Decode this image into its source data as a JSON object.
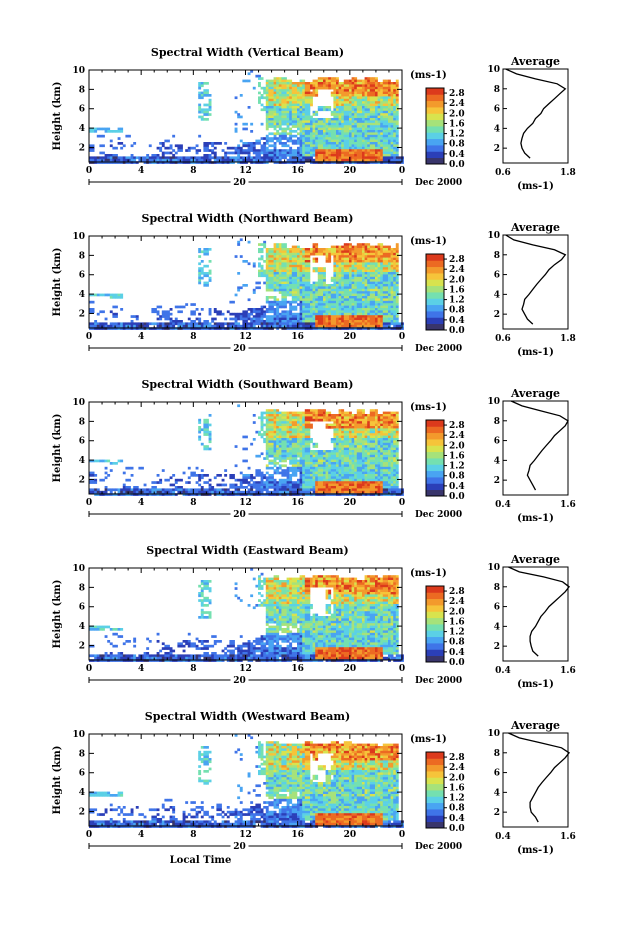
{
  "colors": {
    "scale": [
      "#39356b",
      "#2b3fb8",
      "#3f74e8",
      "#49a4f2",
      "#5bd0e6",
      "#74e0b0",
      "#a6e27a",
      "#d8e34e",
      "#f6c43a",
      "#f39a2c",
      "#ec6a22",
      "#dc3a1c"
    ],
    "line": "#000000"
  },
  "chart_data": [
    {
      "type": "heatmap",
      "title": "Spectral Width (Vertical Beam)",
      "xlabel": "",
      "ylabel": "Height (km)",
      "x_ticks": [
        "0",
        "4",
        "8",
        "12",
        "16",
        "20",
        "0"
      ],
      "xlim": [
        0,
        24
      ],
      "y_ticks": [
        "2",
        "4",
        "6",
        "8",
        "10"
      ],
      "ylim": [
        0.5,
        10
      ],
      "date_marker": "20",
      "date_label": "Dec 2000",
      "colorbar": {
        "unit": "(ms-1)",
        "ticks": [
          "0.0",
          "0.4",
          "0.8",
          "1.2",
          "1.6",
          "2.0",
          "2.4",
          "2.8"
        ],
        "range": [
          0,
          3
        ]
      },
      "profile": {
        "title": "Average",
        "xlabel": "(ms-1)",
        "x_ticks": [
          "0.6",
          "1.8"
        ],
        "xlim": [
          0.6,
          1.8
        ],
        "y_ticks": [
          "2",
          "4",
          "6",
          "8",
          "10"
        ],
        "height": [
          1,
          1.5,
          2,
          2.5,
          3,
          3.5,
          4,
          4.5,
          5,
          5.5,
          6,
          6.5,
          7,
          7.5,
          8,
          8.5,
          9,
          9.5,
          10
        ],
        "value": [
          1.1,
          1.0,
          0.95,
          0.93,
          0.95,
          0.98,
          1.05,
          1.15,
          1.2,
          1.3,
          1.35,
          1.45,
          1.55,
          1.65,
          1.75,
          1.6,
          1.2,
          0.85,
          0.65
        ]
      }
    },
    {
      "type": "heatmap",
      "title": "Spectral Width (Northward Beam)",
      "xlabel": "",
      "ylabel": "Height (km)",
      "x_ticks": [
        "0",
        "4",
        "8",
        "12",
        "16",
        "20",
        "0"
      ],
      "xlim": [
        0,
        24
      ],
      "y_ticks": [
        "2",
        "4",
        "6",
        "8",
        "10"
      ],
      "ylim": [
        0.5,
        10
      ],
      "date_marker": "20",
      "date_label": "Dec 2000",
      "colorbar": {
        "unit": "(ms-1)",
        "ticks": [
          "0.0",
          "0.4",
          "0.8",
          "1.2",
          "1.6",
          "2.0",
          "2.4",
          "2.8"
        ],
        "range": [
          0,
          3
        ]
      },
      "profile": {
        "title": "Average",
        "xlabel": "(ms-1)",
        "x_ticks": [
          "0.6",
          "1.8"
        ],
        "xlim": [
          0.6,
          1.8
        ],
        "y_ticks": [
          "2",
          "4",
          "6",
          "8",
          "10"
        ],
        "height": [
          1,
          1.5,
          2,
          2.5,
          3,
          3.5,
          4,
          4.5,
          5,
          5.5,
          6,
          6.5,
          7,
          7.5,
          8,
          8.5,
          9,
          9.5,
          10
        ],
        "value": [
          1.15,
          1.05,
          1.0,
          0.95,
          0.98,
          1.0,
          1.08,
          1.15,
          1.22,
          1.3,
          1.38,
          1.45,
          1.55,
          1.68,
          1.75,
          1.55,
          1.15,
          0.8,
          0.65
        ]
      }
    },
    {
      "type": "heatmap",
      "title": "Spectral Width (Southward Beam)",
      "xlabel": "",
      "ylabel": "Height (km)",
      "x_ticks": [
        "0",
        "4",
        "8",
        "12",
        "16",
        "20",
        "0"
      ],
      "xlim": [
        0,
        24
      ],
      "y_ticks": [
        "2",
        "4",
        "6",
        "8",
        "10"
      ],
      "ylim": [
        0.5,
        10
      ],
      "date_marker": "20",
      "date_label": "Dec 2000",
      "colorbar": {
        "unit": "(ms-1)",
        "ticks": [
          "0.0",
          "0.4",
          "0.8",
          "1.2",
          "1.6",
          "2.0",
          "2.4",
          "2.8"
        ],
        "range": [
          0,
          3
        ]
      },
      "profile": {
        "title": "Average",
        "xlabel": "(ms-1)",
        "x_ticks": [
          "0.4",
          "1.6"
        ],
        "xlim": [
          0.4,
          1.6
        ],
        "y_ticks": [
          "2",
          "4",
          "6",
          "8",
          "10"
        ],
        "height": [
          1,
          1.5,
          2,
          2.5,
          3,
          3.5,
          4,
          4.5,
          5,
          5.5,
          6,
          6.5,
          7,
          7.5,
          8,
          8.5,
          9,
          9.5,
          10
        ],
        "value": [
          1.0,
          0.95,
          0.9,
          0.85,
          0.88,
          0.9,
          0.98,
          1.05,
          1.12,
          1.2,
          1.28,
          1.35,
          1.45,
          1.55,
          1.6,
          1.45,
          1.1,
          0.75,
          0.55
        ]
      }
    },
    {
      "type": "heatmap",
      "title": "Spectral Width (Eastward Beam)",
      "xlabel": "",
      "ylabel": "Height (km)",
      "x_ticks": [
        "0",
        "4",
        "8",
        "12",
        "16",
        "20",
        "0"
      ],
      "xlim": [
        0,
        24
      ],
      "y_ticks": [
        "2",
        "4",
        "6",
        "8",
        "10"
      ],
      "ylim": [
        0.5,
        10
      ],
      "date_marker": "20",
      "date_label": "Dec 2000",
      "colorbar": {
        "unit": "(ms-1)",
        "ticks": [
          "0.0",
          "0.4",
          "0.8",
          "1.2",
          "1.6",
          "2.0",
          "2.4",
          "2.8"
        ],
        "range": [
          0,
          3
        ]
      },
      "profile": {
        "title": "Average",
        "xlabel": "(ms-1)",
        "x_ticks": [
          "0.4",
          "1.6"
        ],
        "xlim": [
          0.4,
          1.6
        ],
        "y_ticks": [
          "2",
          "4",
          "6",
          "8",
          "10"
        ],
        "height": [
          1,
          1.5,
          2,
          2.5,
          3,
          3.5,
          4,
          4.5,
          5,
          5.5,
          6,
          6.5,
          7,
          7.5,
          8,
          8.5,
          9,
          9.5,
          10
        ],
        "value": [
          1.05,
          0.95,
          0.92,
          0.9,
          0.9,
          0.93,
          1.0,
          1.05,
          1.1,
          1.18,
          1.25,
          1.35,
          1.45,
          1.55,
          1.62,
          1.5,
          1.15,
          0.7,
          0.5
        ]
      }
    },
    {
      "type": "heatmap",
      "title": "Spectral Width (Westward Beam)",
      "xlabel": "Local Time",
      "ylabel": "Height (km)",
      "x_ticks": [
        "0",
        "4",
        "8",
        "12",
        "16",
        "20",
        "0"
      ],
      "xlim": [
        0,
        24
      ],
      "y_ticks": [
        "2",
        "4",
        "6",
        "8",
        "10"
      ],
      "ylim": [
        0.5,
        10
      ],
      "date_marker": "20",
      "date_label": "Dec 2000",
      "colorbar": {
        "unit": "(ms-1)",
        "ticks": [
          "0.0",
          "0.4",
          "0.8",
          "1.2",
          "1.6",
          "2.0",
          "2.4",
          "2.8"
        ],
        "range": [
          0,
          3
        ]
      },
      "profile": {
        "title": "Average",
        "xlabel": "(ms-1)",
        "x_ticks": [
          "0.4",
          "1.6"
        ],
        "xlim": [
          0.4,
          1.6
        ],
        "y_ticks": [
          "2",
          "4",
          "6",
          "8",
          "10"
        ],
        "height": [
          1,
          1.5,
          2,
          2.5,
          3,
          3.5,
          4,
          4.5,
          5,
          5.5,
          6,
          6.5,
          7,
          7.5,
          8,
          8.5,
          9,
          9.5,
          10
        ],
        "value": [
          1.05,
          1.0,
          0.92,
          0.9,
          0.9,
          0.95,
          1.0,
          1.05,
          1.12,
          1.2,
          1.28,
          1.35,
          1.45,
          1.55,
          1.62,
          1.48,
          1.1,
          0.7,
          0.5
        ]
      }
    }
  ]
}
